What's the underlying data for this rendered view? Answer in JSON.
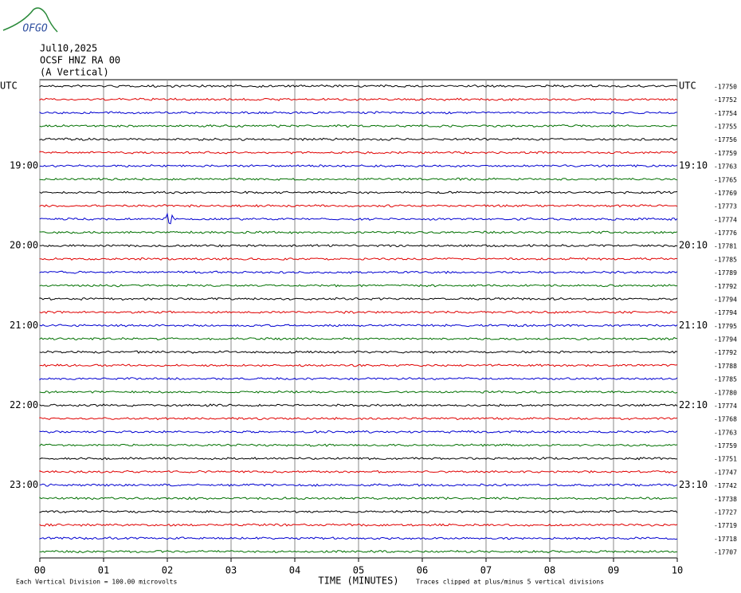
{
  "logo": "OFGO",
  "header": {
    "date": "Jul10,2025",
    "station": "OCSF HNZ RA 00",
    "component": "(A Vertical)"
  },
  "left_labels": [
    "UTC",
    null,
    null,
    null,
    null,
    null,
    "19:00",
    null,
    null,
    null,
    null,
    null,
    "20:00",
    null,
    null,
    null,
    null,
    null,
    "21:00",
    null,
    null,
    null,
    null,
    null,
    "22:00",
    null,
    null,
    null,
    null,
    null,
    "23:00",
    null,
    null,
    null,
    null,
    null
  ],
  "right_labels": [
    "UTC",
    null,
    null,
    null,
    null,
    null,
    "19:10",
    null,
    null,
    null,
    null,
    null,
    "20:10",
    null,
    null,
    null,
    null,
    null,
    "21:10",
    null,
    null,
    null,
    null,
    null,
    "22:10",
    null,
    null,
    null,
    null,
    null,
    "23:10",
    null,
    null,
    null,
    null,
    null
  ],
  "offsets": [
    -17750,
    -17752,
    -17754,
    -17755,
    -17756,
    -17759,
    -17763,
    -17765,
    -17769,
    -17773,
    -17774,
    -17776,
    -17781,
    -17785,
    -17789,
    -17792,
    -17794,
    -17794,
    -17795,
    -17794,
    -17792,
    -17788,
    -17785,
    -17780,
    -17774,
    -17768,
    -17763,
    -17759,
    -17751,
    -17747,
    -17742,
    -17738,
    -17727,
    -17719,
    -17718,
    -17707
  ],
  "trace_colors": [
    "#000000",
    "#e00000",
    "#0000d0",
    "#007000"
  ],
  "time_axis": {
    "label": "TIME (MINUTES)",
    "xlim": [
      0,
      10
    ],
    "ticks": [
      {
        "value": 0,
        "label": "00"
      },
      {
        "value": 1,
        "label": "01"
      },
      {
        "value": 2,
        "label": "02"
      },
      {
        "value": 3,
        "label": "03"
      },
      {
        "value": 4,
        "label": "04"
      },
      {
        "value": 5,
        "label": "05"
      },
      {
        "value": 6,
        "label": "06"
      },
      {
        "value": 7,
        "label": "07"
      },
      {
        "value": 8,
        "label": "08"
      },
      {
        "value": 9,
        "label": "09"
      },
      {
        "value": 10,
        "label": "10"
      }
    ]
  },
  "footer": {
    "scale": "Each Vertical Division =  100.00 microvolts",
    "clip": "Traces clipped at plus/minus 5 vertical divisions"
  }
}
